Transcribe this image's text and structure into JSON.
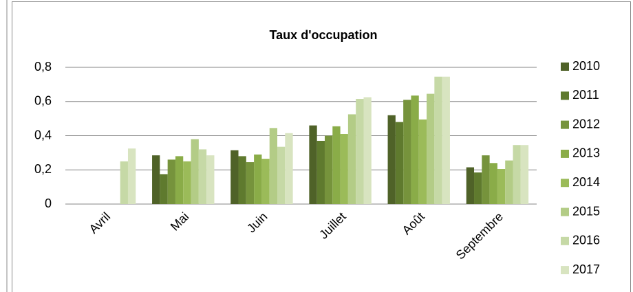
{
  "chart_data": {
    "type": "bar",
    "title": "Taux d'occupation",
    "categories": [
      "Avril",
      "Mai",
      "Juin",
      "Juillet",
      "Août",
      "Septembre"
    ],
    "series": [
      {
        "name": "2010",
        "color": "#4f6228",
        "values": [
          null,
          0.285,
          0.315,
          0.46,
          0.52,
          0.215
        ]
      },
      {
        "name": "2011",
        "color": "#5f7a2e",
        "values": [
          null,
          0.175,
          0.28,
          0.37,
          0.48,
          0.185
        ]
      },
      {
        "name": "2012",
        "color": "#76933c",
        "values": [
          null,
          0.26,
          0.245,
          0.4,
          0.61,
          0.285
        ]
      },
      {
        "name": "2013",
        "color": "#8aac48",
        "values": [
          null,
          0.28,
          0.29,
          0.455,
          0.635,
          0.24
        ]
      },
      {
        "name": "2014",
        "color": "#9bbb59",
        "values": [
          null,
          0.25,
          0.265,
          0.41,
          0.495,
          0.205
        ]
      },
      {
        "name": "2015",
        "color": "#b3cc86",
        "values": [
          null,
          0.38,
          0.445,
          0.525,
          0.645,
          0.255
        ]
      },
      {
        "name": "2016",
        "color": "#c6d9a6",
        "values": [
          0.25,
          0.32,
          0.335,
          0.615,
          0.745,
          0.345
        ]
      },
      {
        "name": "2017",
        "color": "#d8e4c0",
        "values": [
          0.325,
          0.285,
          0.415,
          0.625,
          0.745,
          0.345
        ]
      }
    ],
    "ylim": [
      0,
      0.8
    ],
    "yticks": [
      0,
      {
        "value": 0.2,
        "label": "0,2"
      },
      {
        "value": 0.4,
        "label": "0,4"
      },
      {
        "value": 0.6,
        "label": "0,6"
      },
      {
        "value": 0.8,
        "label": "0,8"
      }
    ],
    "grid": true,
    "legend": "right"
  }
}
